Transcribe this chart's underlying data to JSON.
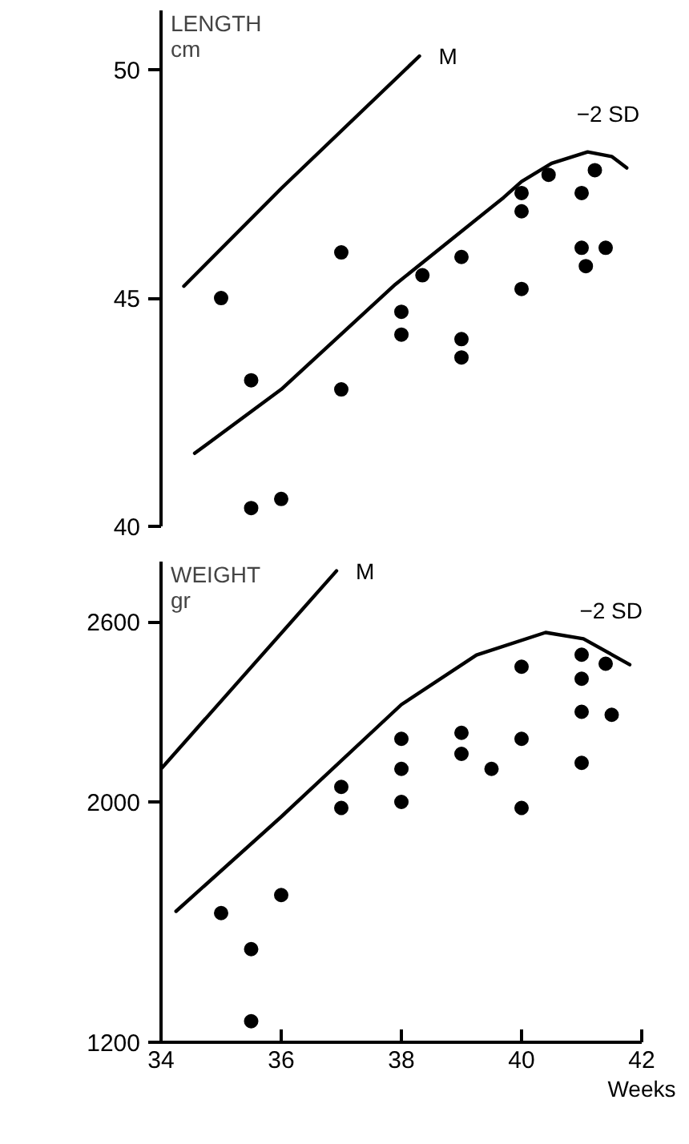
{
  "chart_data": [
    {
      "type": "scatter",
      "ylabel": "LENGTH\ncm",
      "xlim": [
        34,
        42
      ],
      "ylim": [
        40,
        51.3
      ],
      "yticks": [
        40,
        45,
        50
      ],
      "tick_labels": "y",
      "grid": false,
      "legend": false,
      "series": [
        {
          "name": "M",
          "type": "line",
          "color": "#000000",
          "x": [
            34.38,
            36.0,
            38.3
          ],
          "values": [
            45.26,
            47.4,
            50.3
          ]
        },
        {
          "name": "−2 SD",
          "type": "line",
          "color": "#000000",
          "x": [
            34.56,
            36.0,
            37.9,
            39.7,
            40.0,
            40.5,
            41.1,
            41.5,
            41.75
          ],
          "values": [
            41.6,
            43.0,
            45.3,
            47.2,
            47.55,
            47.95,
            48.2,
            48.1,
            47.85
          ]
        },
        {
          "marker": "circle",
          "color": "#000000",
          "x": [
            35,
            35.5,
            35.5,
            36,
            37,
            37,
            38,
            38,
            38.35,
            39,
            39,
            39,
            40,
            40,
            40,
            40.45,
            41,
            41,
            41.07,
            41.22,
            41.4
          ],
          "values": [
            45.0,
            43.2,
            40.4,
            40.6,
            46.0,
            43.0,
            44.7,
            44.2,
            45.5,
            45.9,
            44.1,
            43.7,
            47.3,
            46.9,
            45.2,
            47.7,
            47.3,
            46.1,
            45.7,
            47.8,
            46.1
          ]
        }
      ]
    },
    {
      "type": "scatter",
      "ylabel": "WEIGHT\ngr",
      "xlabel": "Weeks",
      "xlim": [
        34,
        42
      ],
      "xticks": [
        34,
        36,
        38,
        40,
        42
      ],
      "ylim": [
        1200,
        2800
      ],
      "yticks": [
        1200,
        2000,
        2600
      ],
      "grid": false,
      "legend": false,
      "series": [
        {
          "name": "M",
          "type": "line",
          "color": "#000000",
          "x": [
            34.0,
            36.92
          ],
          "values": [
            2110,
            2769
          ]
        },
        {
          "name": "−2 SD",
          "type": "line",
          "color": "#000000",
          "x": [
            34.25,
            36.03,
            38.0,
            39.25,
            40.4,
            41.03,
            41.8
          ],
          "values": [
            1636,
            1956,
            2324,
            2489,
            2564,
            2543,
            2457
          ]
        },
        {
          "marker": "circle",
          "color": "#000000",
          "x": [
            35,
            35.5,
            35.5,
            36,
            37,
            37,
            38,
            38,
            38,
            39,
            39,
            39.5,
            40,
            40,
            40,
            41,
            41,
            41,
            41,
            41.4,
            41.5
          ],
          "values": [
            1630,
            1510,
            1270,
            1690,
            2050,
            1980,
            2210,
            2110,
            2000,
            2230,
            2160,
            2110,
            2450,
            2210,
            1980,
            2490,
            2410,
            2300,
            2130,
            2460,
            2290
          ]
        }
      ]
    }
  ]
}
